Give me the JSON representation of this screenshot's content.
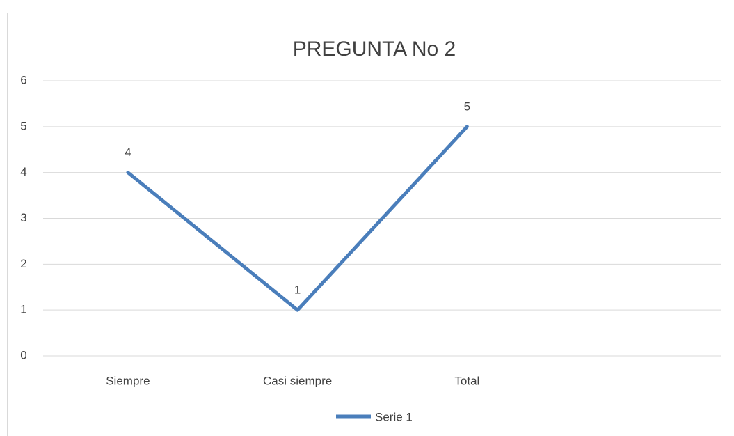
{
  "chart_data": {
    "type": "line",
    "title": "PREGUNTA No 2",
    "categories": [
      "Siempre",
      "Casi siempre",
      "Total",
      null
    ],
    "series": [
      {
        "name": "Serie 1",
        "color": "#4a7ebb",
        "values": [
          4,
          1,
          5,
          null
        ]
      }
    ],
    "ylim": [
      0,
      6
    ],
    "yticks": [
      0,
      1,
      2,
      3,
      4,
      5,
      6
    ],
    "grid": true,
    "legend": "bottom",
    "data_labels": true
  }
}
